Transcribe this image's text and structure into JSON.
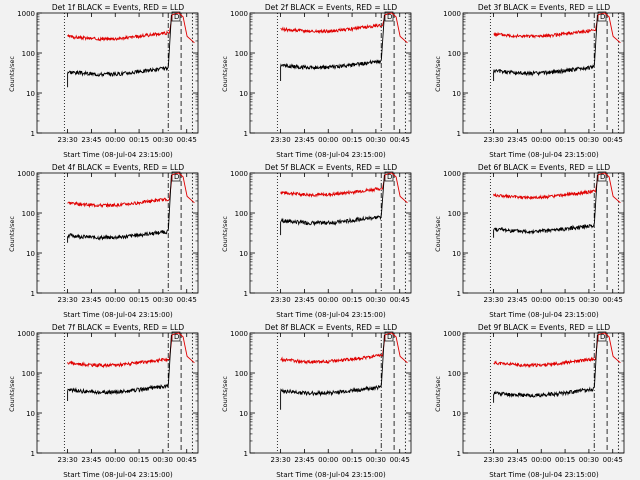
{
  "chart_data": [
    {
      "type": "line",
      "title": "Det 1f BLACK = Events, RED = LLD",
      "xlabel": "Start Time (08-Jul-04 23:15:00)",
      "ylabel": "Counts/sec",
      "yscale": "log",
      "ylim": [
        1,
        1000
      ],
      "yticks": [
        "1",
        "10",
        "100",
        "1000"
      ],
      "xticks": [
        "23:30",
        "23:45",
        "00:00",
        "00:15",
        "00:30",
        "00:45"
      ],
      "events_base": 34,
      "lld_base": 260,
      "events_start": 14,
      "annotation": "D",
      "color_events": "#000000",
      "color_lld": "#e00000"
    },
    {
      "type": "line",
      "title": "Det 2f BLACK = Events, RED = LLD",
      "xlabel": "Start Time (08-Jul-04 23:15:00)",
      "ylabel": "Counts/sec",
      "yscale": "log",
      "ylim": [
        1,
        1000
      ],
      "yticks": [
        "1",
        "10",
        "100",
        "1000"
      ],
      "xticks": [
        "23:30",
        "23:45",
        "00:00",
        "00:15",
        "00:30",
        "00:45"
      ],
      "events_base": 50,
      "lld_base": 400,
      "events_start": 20,
      "annotation": "D",
      "color_events": "#000000",
      "color_lld": "#e00000"
    },
    {
      "type": "line",
      "title": "Det 3f BLACK = Events, RED = LLD",
      "xlabel": "Start Time (08-Jul-04 23:15:00)",
      "ylabel": "Counts/sec",
      "yscale": "log",
      "ylim": [
        1,
        1000
      ],
      "yticks": [
        "1",
        "10",
        "100",
        "1000"
      ],
      "xticks": [
        "23:30",
        "23:45",
        "00:00",
        "00:15",
        "00:30",
        "00:45"
      ],
      "events_base": 36,
      "lld_base": 300,
      "events_start": 20,
      "annotation": "D",
      "color_events": "#000000",
      "color_lld": "#e00000"
    },
    {
      "type": "line",
      "title": "Det 4f BLACK = Events, RED = LLD",
      "xlabel": "Start Time (08-Jul-04 23:15:00)",
      "ylabel": "Counts/sec",
      "yscale": "log",
      "ylim": [
        1,
        1000
      ],
      "yticks": [
        "1",
        "10",
        "100",
        "1000"
      ],
      "xticks": [
        "23:30",
        "23:45",
        "00:00",
        "00:15",
        "00:30",
        "00:45"
      ],
      "events_base": 28,
      "lld_base": 180,
      "events_start": 18,
      "annotation": "D",
      "color_events": "#000000",
      "color_lld": "#e00000"
    },
    {
      "type": "line",
      "title": "Det 5f BLACK = Events, RED = LLD",
      "xlabel": "Start Time (08-Jul-04 23:15:00)",
      "ylabel": "Counts/sec",
      "yscale": "log",
      "ylim": [
        1,
        1000
      ],
      "yticks": [
        "1",
        "10",
        "100",
        "1000"
      ],
      "xticks": [
        "23:30",
        "23:45",
        "00:00",
        "00:15",
        "00:30",
        "00:45"
      ],
      "events_base": 65,
      "lld_base": 330,
      "events_start": 28,
      "annotation": "D",
      "color_events": "#000000",
      "color_lld": "#e00000"
    },
    {
      "type": "line",
      "title": "Det 6f BLACK = Events, RED = LLD",
      "xlabel": "Start Time (08-Jul-04 23:15:00)",
      "ylabel": "Counts/sec",
      "yscale": "log",
      "ylim": [
        1,
        1000
      ],
      "yticks": [
        "1",
        "10",
        "100",
        "1000"
      ],
      "xticks": [
        "23:30",
        "23:45",
        "00:00",
        "00:15",
        "00:30",
        "00:45"
      ],
      "events_base": 40,
      "lld_base": 280,
      "events_start": 24,
      "annotation": "D",
      "color_events": "#000000",
      "color_lld": "#e00000"
    },
    {
      "type": "line",
      "title": "Det 7f BLACK = Events, RED = LLD",
      "xlabel": "Start Time (08-Jul-04 23:15:00)",
      "ylabel": "Counts/sec",
      "yscale": "log",
      "ylim": [
        1,
        1000
      ],
      "yticks": [
        "1",
        "10",
        "100",
        "1000"
      ],
      "xticks": [
        "23:30",
        "23:45",
        "00:00",
        "00:15",
        "00:30",
        "00:45"
      ],
      "events_base": 38,
      "lld_base": 180,
      "events_start": 20,
      "annotation": "D",
      "color_events": "#000000",
      "color_lld": "#e00000"
    },
    {
      "type": "line",
      "title": "Det 8f BLACK = Events, RED = LLD",
      "xlabel": "Start Time (08-Jul-04 23:15:00)",
      "ylabel": "Counts/sec",
      "yscale": "log",
      "ylim": [
        1,
        1000
      ],
      "yticks": [
        "1",
        "10",
        "100",
        "1000"
      ],
      "xticks": [
        "23:30",
        "23:45",
        "00:00",
        "00:15",
        "00:30",
        "00:45"
      ],
      "events_base": 36,
      "lld_base": 220,
      "events_start": 12,
      "annotation": "D",
      "color_events": "#000000",
      "color_lld": "#e00000"
    },
    {
      "type": "line",
      "title": "Det 9f BLACK = Events, RED = LLD",
      "xlabel": "Start Time (08-Jul-04 23:15:00)",
      "ylabel": "Counts/sec",
      "yscale": "log",
      "ylim": [
        1,
        1000
      ],
      "yticks": [
        "1",
        "10",
        "100",
        "1000"
      ],
      "xticks": [
        "23:30",
        "23:45",
        "00:00",
        "00:15",
        "00:30",
        "00:45"
      ],
      "events_base": 32,
      "lld_base": 180,
      "events_start": 18,
      "annotation": "D",
      "color_events": "#000000",
      "color_lld": "#e00000"
    }
  ]
}
